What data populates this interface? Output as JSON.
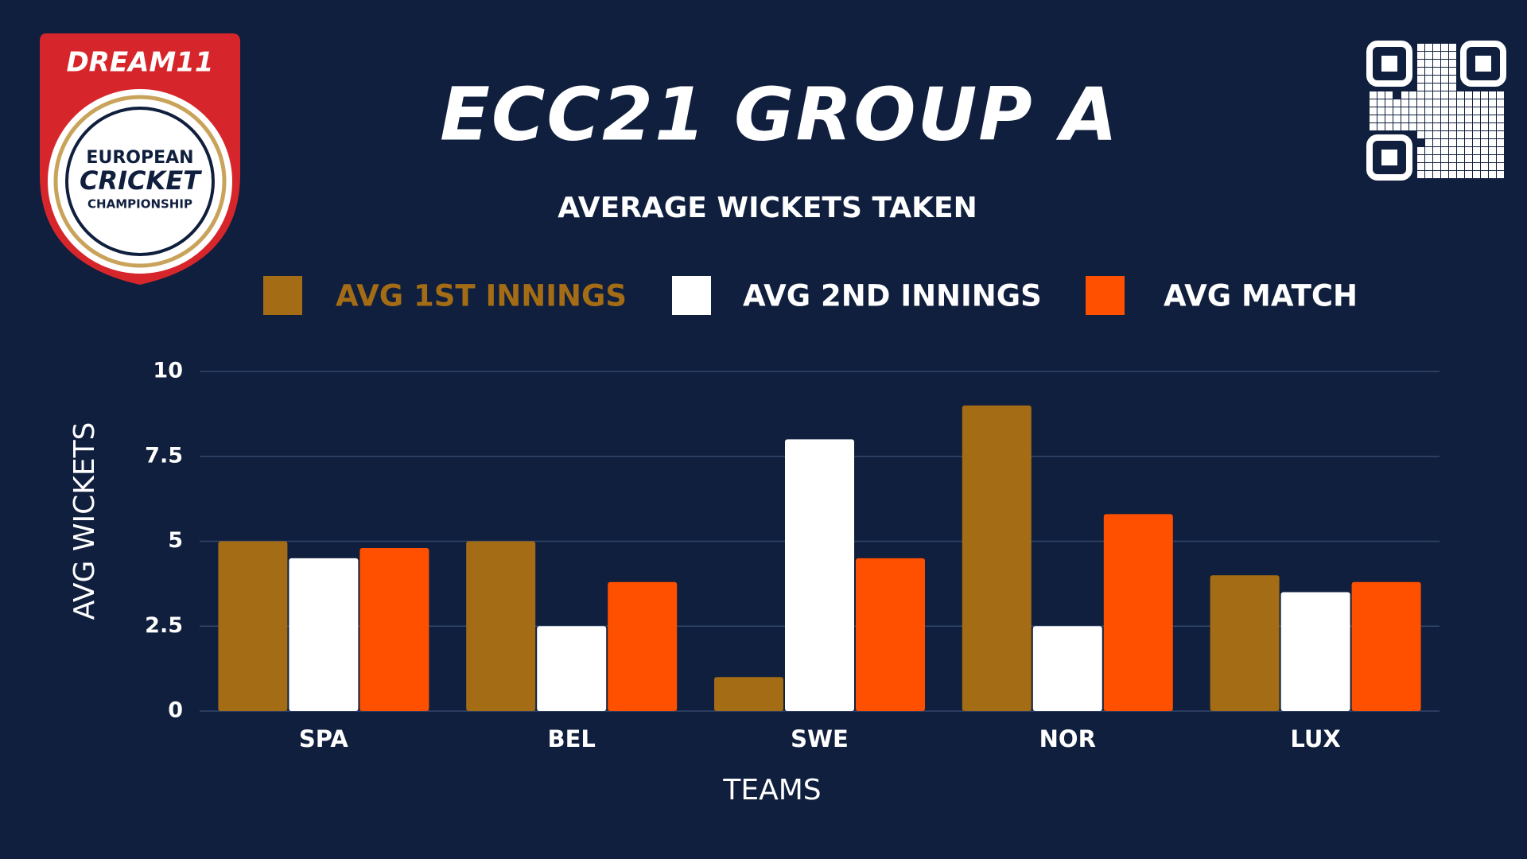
{
  "logo": {
    "brand": "DREAM11",
    "lines": [
      "EUROPEAN",
      "CRICKET",
      "CHAMPIONSHIP"
    ]
  },
  "chart_data": {
    "type": "bar",
    "title": "ECC21 GROUP A",
    "subtitle": "AVERAGE WICKETS TAKEN",
    "x_label": "TEAMS",
    "y_label": "AVG WICKETS",
    "categories": [
      "SPA",
      "BEL",
      "SWE",
      "NOR",
      "LUX"
    ],
    "series": [
      {
        "name": "AVG 1ST INNINGS",
        "color": "#a36c15",
        "values": [
          5,
          5,
          1,
          9,
          4
        ]
      },
      {
        "name": "AVG 2ND INNINGS",
        "color": "#ffffff",
        "values": [
          4.5,
          2.5,
          8,
          2.5,
          3.5
        ]
      },
      {
        "name": "AVG MATCH",
        "color": "#ff5000",
        "values": [
          4.8,
          3.8,
          4.5,
          5.8,
          3.8
        ]
      }
    ],
    "ylim": [
      0,
      10
    ],
    "yticks": [
      0,
      2.5,
      5,
      7.5,
      10
    ],
    "grid": true
  }
}
